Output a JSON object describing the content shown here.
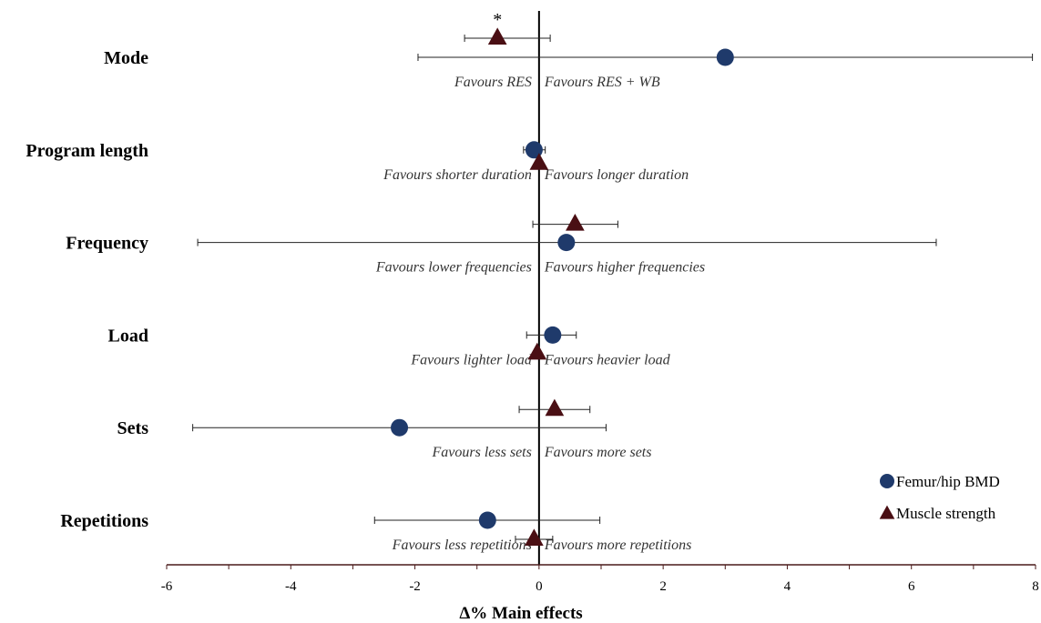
{
  "chart_data": {
    "type": "forest",
    "xlabel": "Δ% Main effects",
    "xlim": [
      -6,
      8
    ],
    "x_ticks": [
      -6,
      -4,
      -2,
      0,
      2,
      4,
      6,
      8
    ],
    "x_tick_labels": [
      "-6",
      "-4",
      "-2",
      "0",
      "2",
      "4",
      "6",
      "8"
    ],
    "colors": {
      "femur": "#1f3a6b",
      "strength": "#4a0f14",
      "axis": "#4a1a1a",
      "reference": "#000000"
    },
    "legend": [
      {
        "name": "Femur/hip BMD",
        "marker": "circle"
      },
      {
        "name": "Muscle strength",
        "marker": "triangle"
      }
    ],
    "categories": [
      {
        "label": "Mode",
        "favours_left": "Favours RES",
        "favours_right": "Favours RES + WB",
        "femur": {
          "value": 3.0,
          "ci": [
            -1.95,
            7.95
          ]
        },
        "strength": {
          "value": -0.67,
          "ci": [
            -1.2,
            0.18
          ],
          "annotation": "*"
        }
      },
      {
        "label": "Program length",
        "favours_left": "Favours shorter duration",
        "favours_right": "Favours longer duration",
        "femur": {
          "value": -0.08,
          "ci": [
            -0.25,
            0.1
          ]
        },
        "strength": {
          "value": 0.0,
          "ci": [
            0.0,
            0.0
          ]
        }
      },
      {
        "label": "Frequency",
        "favours_left": "Favours lower frequencies",
        "favours_right": "Favours higher frequencies",
        "femur": {
          "value": 0.44,
          "ci": [
            -5.5,
            6.4
          ]
        },
        "strength": {
          "value": 0.58,
          "ci": [
            -0.1,
            1.27
          ]
        }
      },
      {
        "label": "Load",
        "favours_left": "Favours lighter load",
        "favours_right": "Favours heavier load",
        "femur": {
          "value": 0.22,
          "ci": [
            -0.2,
            0.6
          ]
        },
        "strength": {
          "value": -0.03,
          "ci": [
            -0.03,
            -0.03
          ]
        }
      },
      {
        "label": "Sets",
        "favours_left": "Favours less sets",
        "favours_right": "Favours more sets",
        "femur": {
          "value": -2.25,
          "ci": [
            -5.58,
            1.08
          ]
        },
        "strength": {
          "value": 0.25,
          "ci": [
            -0.32,
            0.82
          ]
        }
      },
      {
        "label": "Repetitions",
        "favours_left": "Favours less repetitions",
        "favours_right": "Favours more repetitions",
        "femur": {
          "value": -0.83,
          "ci": [
            -2.65,
            0.98
          ]
        },
        "strength": {
          "value": -0.08,
          "ci": [
            -0.38,
            0.22
          ]
        }
      }
    ]
  }
}
